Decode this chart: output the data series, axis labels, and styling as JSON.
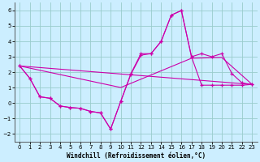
{
  "xlabel": "Windchill (Refroidissement éolien,°C)",
  "bg_color": "#cceeff",
  "grid_color": "#99cccc",
  "line_color": "#cc00aa",
  "xlim": [
    -0.5,
    23.5
  ],
  "ylim": [
    -2.5,
    6.5
  ],
  "xticks": [
    0,
    1,
    2,
    3,
    4,
    5,
    6,
    7,
    8,
    9,
    10,
    11,
    12,
    13,
    14,
    15,
    16,
    17,
    18,
    19,
    20,
    21,
    22,
    23
  ],
  "yticks": [
    -2,
    -1,
    0,
    1,
    2,
    3,
    4,
    5,
    6
  ],
  "curve1_x": [
    0,
    1,
    2,
    3,
    4,
    5,
    6,
    7,
    8,
    9,
    10,
    11,
    12,
    13,
    14,
    15,
    16,
    17,
    18,
    19,
    20,
    21,
    22,
    23
  ],
  "curve1_y": [
    2.4,
    1.6,
    0.4,
    0.3,
    -0.2,
    -0.3,
    -0.35,
    -0.55,
    -0.65,
    -1.7,
    0.1,
    1.9,
    3.2,
    3.2,
    4.0,
    5.7,
    6.0,
    3.0,
    1.15,
    1.15,
    1.15,
    1.15,
    1.15,
    1.2
  ],
  "curve2_x": [
    0,
    1,
    2,
    3,
    4,
    5,
    6,
    7,
    8,
    9,
    10,
    11,
    12,
    13,
    14,
    15,
    16,
    17,
    18,
    19,
    20,
    21,
    22,
    23
  ],
  "curve2_y": [
    2.4,
    1.6,
    0.4,
    0.3,
    -0.2,
    -0.3,
    -0.35,
    -0.55,
    -0.65,
    -1.7,
    0.1,
    1.85,
    3.1,
    3.2,
    4.0,
    5.7,
    6.0,
    3.0,
    3.2,
    3.0,
    3.2,
    1.9,
    1.3,
    1.2
  ],
  "curve3_x": [
    0,
    23
  ],
  "curve3_y": [
    2.4,
    1.2
  ],
  "curve4_x": [
    0,
    10,
    17,
    20,
    23
  ],
  "curve4_y": [
    2.4,
    1.0,
    2.9,
    2.95,
    1.2
  ]
}
